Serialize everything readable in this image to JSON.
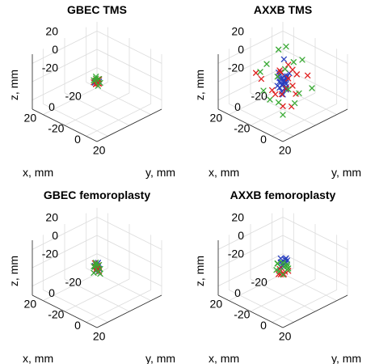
{
  "chart_data": [
    {
      "type": "scatter3d",
      "title": "GBEC TMS",
      "xlabel": "x, mm",
      "ylabel": "y, mm",
      "zlabel": "z, mm",
      "xlim": [
        -30,
        30
      ],
      "ylim": [
        -30,
        30
      ],
      "zlim": [
        -30,
        30
      ],
      "xticks": [
        -20,
        0,
        20
      ],
      "yticks": [
        -20,
        0,
        20
      ],
      "zticks": [
        -20,
        0,
        20
      ],
      "series": [
        {
          "color": "#2a3fbf",
          "marker": "x",
          "points": [
            [
              0,
              0,
              1
            ],
            [
              1,
              -1,
              -1
            ],
            [
              -1,
              1,
              0
            ]
          ]
        },
        {
          "color": "#e02020",
          "marker": "x",
          "points": [
            [
              0,
              0,
              0
            ],
            [
              1,
              0,
              2
            ],
            [
              -1,
              -1,
              -2
            ],
            [
              0,
              1,
              3
            ],
            [
              2,
              1,
              -1
            ],
            [
              -2,
              0,
              1
            ],
            [
              1,
              2,
              0
            ],
            [
              0,
              -1,
              -3
            ],
            [
              1,
              1,
              1
            ],
            [
              -1,
              0,
              2
            ],
            [
              2,
              -1,
              0
            ],
            [
              0,
              2,
              -1
            ]
          ]
        },
        {
          "color": "#3aaa35",
          "marker": "x",
          "points": [
            [
              1,
              0,
              4
            ],
            [
              -1,
              1,
              3
            ],
            [
              0,
              -1,
              5
            ],
            [
              2,
              0,
              2
            ],
            [
              -2,
              1,
              -2
            ],
            [
              1,
              -2,
              1
            ],
            [
              0,
              1,
              -4
            ]
          ]
        }
      ]
    },
    {
      "type": "scatter3d",
      "title": "AXXB TMS",
      "xlabel": "x, mm",
      "ylabel": "y, mm",
      "zlabel": "z, mm",
      "xlim": [
        -30,
        30
      ],
      "ylim": [
        -30,
        30
      ],
      "zlim": [
        -30,
        30
      ],
      "xticks": [
        -20,
        0,
        20
      ],
      "yticks": [
        -20,
        0,
        20
      ],
      "zticks": [
        -20,
        0,
        20
      ],
      "series": [
        {
          "color": "#2a3fbf",
          "marker": "x",
          "points": [
            [
              -2,
              2,
              6
            ],
            [
              1,
              -1,
              3
            ],
            [
              -1,
              0,
              0
            ],
            [
              2,
              1,
              -2
            ],
            [
              0,
              2,
              2
            ],
            [
              -3,
              -1,
              4
            ],
            [
              3,
              -2,
              -4
            ],
            [
              1,
              3,
              1
            ],
            [
              -2,
              1,
              -3
            ],
            [
              0,
              -3,
              5
            ],
            [
              2,
              -1,
              -6
            ],
            [
              -1,
              2,
              -8
            ],
            [
              3,
              3,
              0
            ],
            [
              -3,
              0,
              2
            ],
            [
              1,
              0,
              -10
            ],
            [
              0,
              1,
              25
            ],
            [
              -4,
              2,
              8
            ],
            [
              2,
              -2,
              10
            ],
            [
              0,
              0,
              -14
            ],
            [
              4,
              1,
              3
            ],
            [
              -2,
              -2,
              -1
            ],
            [
              1,
              4,
              -3
            ],
            [
              -1,
              -4,
              1
            ]
          ]
        },
        {
          "color": "#e02020",
          "marker": "x",
          "points": [
            [
              -8,
              -3,
              12
            ],
            [
              3,
              8,
              10
            ],
            [
              -5,
              4,
              -5
            ],
            [
              6,
              -4,
              -8
            ],
            [
              -8,
              -5,
              -15
            ],
            [
              -13,
              10,
              5
            ],
            [
              2,
              10,
              -20
            ],
            [
              -3,
              -6,
              7
            ],
            [
              10,
              -10,
              3
            ],
            [
              5,
              -2,
              -12
            ],
            [
              -2,
              7,
              16
            ],
            [
              7,
              6,
              -6
            ],
            [
              -6,
              -8,
              2
            ],
            [
              12,
              -13,
              9
            ],
            [
              -10,
              2,
              -18
            ],
            [
              4,
              4,
              -22
            ],
            [
              -4,
              9,
              11
            ]
          ]
        },
        {
          "color": "#3aaa35",
          "marker": "x",
          "points": [
            [
              -1,
              14,
              -5
            ],
            [
              -13,
              -3,
              12
            ],
            [
              9,
              -3,
              -16
            ],
            [
              -14,
              4,
              18
            ],
            [
              2,
              -16,
              -18
            ],
            [
              6,
              8,
              22
            ],
            [
              -4,
              -8,
              28
            ],
            [
              11,
              7,
              -12
            ],
            [
              -16,
              11,
              -10
            ],
            [
              3,
              -12,
              14
            ],
            [
              8,
              13,
              4
            ],
            [
              -9,
              -14,
              -8
            ],
            [
              15,
              -6,
              16
            ],
            [
              -6,
              5,
              -24
            ],
            [
              12,
              12,
              -22
            ],
            [
              -12,
              -9,
              26
            ]
          ]
        }
      ]
    },
    {
      "type": "scatter3d",
      "title": "GBEC femoroplasty",
      "xlabel": "x, mm",
      "ylabel": "y, mm",
      "zlabel": "z, mm",
      "xlim": [
        -30,
        30
      ],
      "ylim": [
        -30,
        30
      ],
      "zlim": [
        -30,
        30
      ],
      "xticks": [
        -20,
        0,
        20
      ],
      "yticks": [
        -20,
        0,
        20
      ],
      "zticks": [
        -20,
        0,
        20
      ],
      "series": [
        {
          "color": "#2a3fbf",
          "marker": "x",
          "points": [
            [
              0,
              0,
              4
            ],
            [
              1,
              -1,
              2
            ],
            [
              -1,
              1,
              -1
            ],
            [
              0,
              1,
              6
            ],
            [
              1,
              0,
              -3
            ],
            [
              -1,
              0,
              1
            ]
          ]
        },
        {
          "color": "#e02020",
          "marker": "x",
          "points": [
            [
              0,
              0,
              0
            ],
            [
              1,
              0,
              2
            ],
            [
              -1,
              -1,
              -2
            ],
            [
              0,
              1,
              3
            ],
            [
              2,
              1,
              -1
            ],
            [
              -1,
              1,
              -4
            ],
            [
              1,
              -1,
              5
            ],
            [
              0,
              -1,
              -3
            ],
            [
              1,
              1,
              1
            ],
            [
              -1,
              0,
              2
            ]
          ]
        },
        {
          "color": "#3aaa35",
          "marker": "x",
          "points": [
            [
              1,
              0,
              4
            ],
            [
              -1,
              1,
              3
            ],
            [
              0,
              -1,
              5
            ],
            [
              2,
              0,
              2
            ],
            [
              -2,
              1,
              -2
            ],
            [
              1,
              -2,
              1
            ],
            [
              0,
              1,
              -4
            ],
            [
              2,
              -1,
              -5
            ],
            [
              -1,
              2,
              -6
            ]
          ]
        }
      ]
    },
    {
      "type": "scatter3d",
      "title": "AXXB femoroplasty",
      "xlabel": "x, mm",
      "ylabel": "y, mm",
      "zlabel": "z, mm",
      "xlim": [
        -30,
        30
      ],
      "ylim": [
        -30,
        30
      ],
      "zlim": [
        -30,
        30
      ],
      "xticks": [
        -20,
        0,
        20
      ],
      "yticks": [
        -20,
        0,
        20
      ],
      "zticks": [
        -20,
        0,
        20
      ],
      "series": [
        {
          "color": "#2a3fbf",
          "marker": "x",
          "points": [
            [
              -2,
              2,
              8
            ],
            [
              1,
              -1,
              6
            ],
            [
              -1,
              0,
              4
            ],
            [
              0,
              2,
              10
            ],
            [
              -3,
              -1,
              7
            ],
            [
              1,
              1,
              3
            ],
            [
              -2,
              1,
              5
            ],
            [
              0,
              -2,
              9
            ],
            [
              2,
              0,
              2
            ],
            [
              -1,
              2,
              11
            ]
          ]
        },
        {
          "color": "#e02020",
          "marker": "x",
          "points": [
            [
              -3,
              2,
              -4
            ],
            [
              2,
              -2,
              -7
            ],
            [
              1,
              3,
              -2
            ],
            [
              -2,
              -1,
              -9
            ],
            [
              3,
              1,
              -5
            ],
            [
              0,
              -3,
              -3
            ]
          ]
        },
        {
          "color": "#3aaa35",
          "marker": "x",
          "points": [
            [
              3,
              -2,
              5
            ],
            [
              -1,
              4,
              1
            ],
            [
              4,
              1,
              -1
            ],
            [
              -3,
              -3,
              2
            ],
            [
              2,
              3,
              4
            ],
            [
              5,
              -1,
              0
            ],
            [
              -2,
              2,
              -2
            ],
            [
              1,
              -4,
              3
            ],
            [
              3,
              3,
              -4
            ],
            [
              0,
              4,
              6
            ],
            [
              -4,
              0,
              -1
            ]
          ]
        }
      ]
    }
  ]
}
